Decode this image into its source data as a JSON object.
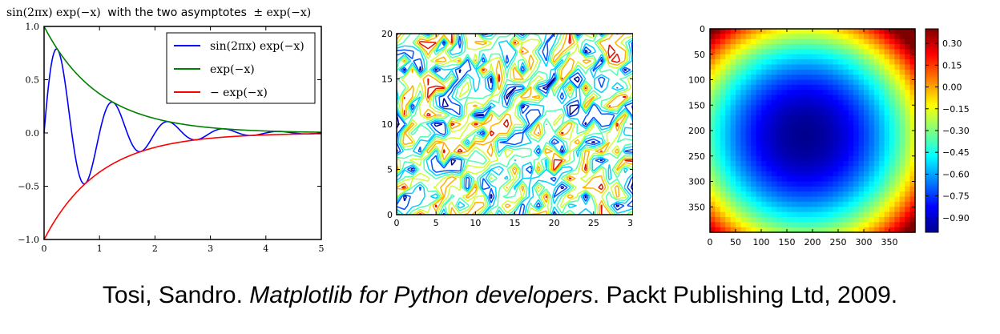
{
  "chart_data": [
    {
      "type": "line",
      "title": "sin(2πx) exp(−x) with the two asymptotes ± exp(−x)",
      "title_math_1": "sin(2πx) exp(−x)",
      "title_text": "with the two asymptotes",
      "title_math_2": "± exp(−x)",
      "xlim": [
        0,
        5
      ],
      "ylim": [
        -1.0,
        1.0
      ],
      "xticks": [
        "0",
        "1",
        "2",
        "3",
        "4",
        "5"
      ],
      "yticks": [
        "1.0",
        "0.5",
        "0.0",
        "−0.5",
        "−1.0"
      ],
      "grid": false,
      "legend_position": "upper-right",
      "series": [
        {
          "name": "sin(2πx) exp(−x)",
          "color": "#0000ff",
          "function": "sin(2*pi*x)*exp(-x)"
        },
        {
          "name": "exp(−x)",
          "color": "#008000",
          "function": "exp(-x)"
        },
        {
          "name": "− exp(−x)",
          "color": "#ff0000",
          "function": "-exp(-x)"
        }
      ]
    },
    {
      "type": "contour",
      "xlim": [
        0,
        30
      ],
      "ylim": [
        0,
        20
      ],
      "xticks": [
        "0",
        "5",
        "10",
        "15",
        "20",
        "25",
        "30"
      ],
      "yticks": [
        "20",
        "15",
        "10",
        "5",
        "0"
      ],
      "levels": 7,
      "colors": [
        "#00008f",
        "#0050ff",
        "#00cfff",
        "#50ffaf",
        "#cfff30",
        "#ffb000",
        "#e01000"
      ],
      "grid": false
    },
    {
      "type": "heatmap",
      "colormap": "jet",
      "xticks": [
        "0",
        "50",
        "100",
        "150",
        "200",
        "250",
        "300",
        "350"
      ],
      "yticks": [
        "0",
        "50",
        "100",
        "150",
        "200",
        "250",
        "300",
        "350"
      ],
      "colorbar_ticks": [
        "0.30",
        "0.15",
        "0.00",
        "−0.15",
        "−0.30",
        "−0.45",
        "−0.60",
        "−0.75",
        "−0.90"
      ],
      "colorbar_range": [
        -1.0,
        0.4
      ]
    }
  ],
  "citation": {
    "authors": "Tosi, Sandro. ",
    "book": "Matplotlib for Python developers",
    "rest": ". Packt Publishing Ltd, 2009."
  }
}
